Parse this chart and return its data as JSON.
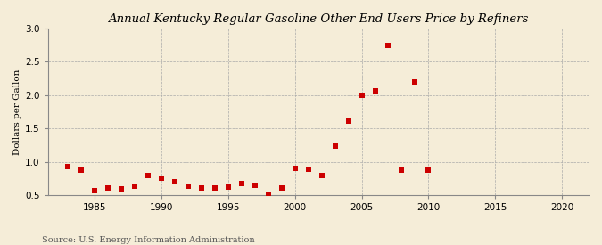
{
  "title": "Annual Kentucky Regular Gasoline Other End Users Price by Refiners",
  "ylabel": "Dollars per Gallon",
  "source": "Source: U.S. Energy Information Administration",
  "background_color": "#f5edd8",
  "marker_color": "#cc0000",
  "marker": "s",
  "marker_size": 14,
  "xlim": [
    1981.5,
    2022
  ],
  "ylim": [
    0.5,
    3.0
  ],
  "xticks": [
    1985,
    1990,
    1995,
    2000,
    2005,
    2010,
    2015,
    2020
  ],
  "yticks": [
    0.5,
    1.0,
    1.5,
    2.0,
    2.5,
    3.0
  ],
  "years": [
    1983,
    1984,
    1985,
    1986,
    1987,
    1988,
    1989,
    1990,
    1991,
    1992,
    1993,
    1994,
    1995,
    1996,
    1997,
    1998,
    1999,
    2000,
    2001,
    2002,
    2003,
    2004,
    2005,
    2006,
    2007,
    2008,
    2009,
    2010
  ],
  "values": [
    0.93,
    0.87,
    0.57,
    0.6,
    0.59,
    0.63,
    0.8,
    0.75,
    0.7,
    0.63,
    0.6,
    0.6,
    0.62,
    0.67,
    0.65,
    0.51,
    0.6,
    0.9,
    0.89,
    0.79,
    1.24,
    1.61,
    2.0,
    2.06,
    2.75,
    0.87,
    2.2,
    0.88
  ]
}
